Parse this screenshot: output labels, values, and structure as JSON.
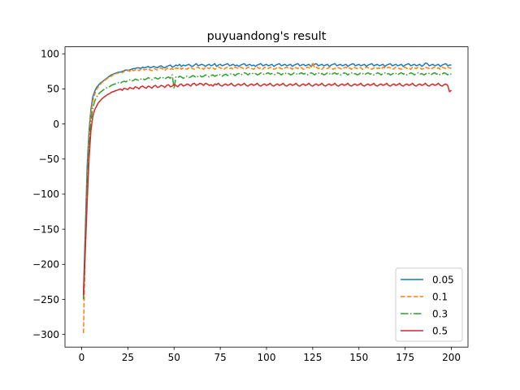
{
  "chart_data": {
    "type": "line",
    "title": "puyuandong's result",
    "xlabel": "",
    "ylabel": "",
    "xlim": [
      -9,
      209
    ],
    "ylim": [
      -318,
      110
    ],
    "x_ticks": [
      0,
      25,
      50,
      75,
      100,
      125,
      150,
      175,
      200
    ],
    "y_ticks": [
      -300,
      -250,
      -200,
      -150,
      -100,
      -50,
      0,
      50,
      100
    ],
    "grid": false,
    "legend_position": "lower-right",
    "x_start": 1,
    "series": [
      {
        "name": "0.05",
        "color": "#1f77b4",
        "dash": "solid",
        "values": [
          -240,
          -150,
          -60,
          -10,
          20,
          38,
          46,
          52,
          55,
          58,
          60,
          62,
          64,
          66,
          68,
          70,
          71,
          72,
          73,
          74,
          74,
          75,
          76,
          77,
          76,
          77,
          78,
          79,
          79,
          80,
          80,
          79,
          81,
          80,
          81,
          82,
          80,
          81,
          82,
          81,
          80,
          82,
          83,
          81,
          80,
          82,
          83,
          84,
          81,
          82,
          84,
          83,
          85,
          82,
          84,
          83,
          84,
          85,
          83,
          82,
          84,
          86,
          83,
          84,
          85,
          84,
          82,
          84,
          85,
          83,
          84,
          86,
          82,
          84,
          85,
          83,
          84,
          85,
          86,
          83,
          84,
          85,
          83,
          84,
          82,
          84,
          85,
          86,
          83,
          84,
          85,
          83,
          84,
          82,
          84,
          85,
          86,
          83,
          84,
          85,
          83,
          84,
          85,
          82,
          84,
          85,
          86,
          83,
          84,
          85,
          83,
          84,
          85,
          82,
          84,
          85,
          86,
          83,
          84,
          85,
          83,
          84,
          85,
          82,
          84,
          85,
          86,
          83,
          84,
          85,
          83,
          84,
          85,
          82,
          84,
          85,
          86,
          83,
          84,
          85,
          83,
          84,
          85,
          82,
          84,
          85,
          86,
          83,
          84,
          85,
          83,
          84,
          85,
          82,
          84,
          85,
          86,
          83,
          84,
          85,
          83,
          84,
          85,
          82,
          84,
          85,
          86,
          83,
          84,
          85,
          83,
          84,
          85,
          82,
          84,
          85,
          86,
          83,
          84,
          85,
          83,
          84,
          85,
          82,
          84,
          87,
          86,
          83,
          84,
          85,
          83,
          84,
          85,
          82,
          84,
          85,
          86,
          83,
          84,
          84
        ]
      },
      {
        "name": "0.1",
        "color": "#ff7f0e",
        "dash": "dashed",
        "values": [
          -298,
          -170,
          -80,
          -20,
          15,
          32,
          42,
          49,
          53,
          56,
          59,
          61,
          63,
          65,
          67,
          68,
          70,
          71,
          72,
          73,
          74,
          73,
          75,
          76,
          77,
          75,
          78,
          76,
          77,
          78,
          76,
          78,
          79,
          77,
          78,
          79,
          77,
          76,
          79,
          78,
          77,
          79,
          80,
          78,
          76,
          79,
          80,
          78,
          79,
          77,
          80,
          79,
          81,
          78,
          80,
          79,
          78,
          80,
          81,
          79,
          78,
          80,
          81,
          79,
          80,
          78,
          81,
          80,
          79,
          81,
          80,
          78,
          79,
          81,
          80,
          79,
          78,
          80,
          81,
          79,
          80,
          78,
          81,
          80,
          79,
          81,
          80,
          78,
          79,
          81,
          80,
          79,
          78,
          80,
          81,
          79,
          80,
          78,
          81,
          80,
          79,
          81,
          80,
          78,
          79,
          81,
          80,
          79,
          78,
          80,
          81,
          79,
          80,
          78,
          81,
          80,
          79,
          81,
          80,
          78,
          79,
          81,
          80,
          79,
          88,
          80,
          81,
          79,
          80,
          78,
          81,
          80,
          79,
          81,
          80,
          78,
          79,
          81,
          80,
          79,
          78,
          80,
          81,
          79,
          80,
          78,
          81,
          80,
          79,
          81,
          80,
          78,
          79,
          81,
          80,
          79,
          78,
          80,
          81,
          79,
          80,
          78,
          81,
          80,
          79,
          81,
          80,
          78,
          79,
          81,
          80,
          79,
          78,
          80,
          81,
          79,
          80,
          78,
          81,
          80,
          79,
          81,
          80,
          78,
          79,
          81,
          80,
          79,
          78,
          80,
          81,
          79,
          80,
          78,
          81,
          80,
          79,
          81,
          80,
          79
        ]
      },
      {
        "name": "0.3",
        "color": "#2ca02c",
        "dash": "dashdot",
        "values": [
          -250,
          -160,
          -90,
          -30,
          5,
          22,
          32,
          38,
          42,
          45,
          47,
          49,
          51,
          52,
          53,
          55,
          56,
          57,
          58,
          59,
          58,
          60,
          61,
          60,
          62,
          63,
          61,
          62,
          64,
          63,
          62,
          64,
          65,
          63,
          64,
          66,
          65,
          63,
          65,
          66,
          64,
          65,
          67,
          66,
          64,
          66,
          67,
          65,
          70,
          50,
          67,
          66,
          68,
          67,
          65,
          67,
          68,
          66,
          67,
          69,
          68,
          66,
          68,
          69,
          67,
          68,
          70,
          69,
          67,
          69,
          70,
          68,
          69,
          71,
          70,
          68,
          70,
          71,
          69,
          70,
          72,
          71,
          69,
          71,
          72,
          70,
          71,
          73,
          72,
          70,
          72,
          73,
          71,
          72,
          70,
          71,
          73,
          72,
          70,
          72,
          73,
          71,
          72,
          70,
          71,
          73,
          72,
          70,
          72,
          73,
          71,
          72,
          70,
          71,
          73,
          72,
          70,
          72,
          73,
          71,
          72,
          70,
          71,
          73,
          72,
          70,
          72,
          73,
          71,
          72,
          70,
          71,
          73,
          72,
          70,
          72,
          73,
          71,
          72,
          70,
          71,
          73,
          72,
          70,
          72,
          73,
          71,
          72,
          70,
          71,
          73,
          72,
          70,
          72,
          73,
          71,
          72,
          70,
          71,
          73,
          72,
          70,
          72,
          73,
          71,
          72,
          70,
          71,
          73,
          72,
          70,
          72,
          73,
          71,
          72,
          70,
          71,
          73,
          72,
          70,
          72,
          73,
          71,
          72,
          70,
          71,
          73,
          72,
          70,
          72,
          73,
          71,
          72,
          70,
          71,
          73,
          72,
          70,
          72,
          71
        ]
      },
      {
        "name": "0.5",
        "color": "#d62728",
        "dash": "solid",
        "values": [
          -245,
          -180,
          -110,
          -50,
          -10,
          10,
          20,
          25,
          30,
          33,
          36,
          38,
          40,
          42,
          43,
          45,
          46,
          47,
          48,
          49,
          50,
          48,
          51,
          50,
          49,
          52,
          51,
          50,
          53,
          52,
          50,
          53,
          54,
          52,
          51,
          54,
          53,
          51,
          54,
          55,
          52,
          53,
          55,
          54,
          52,
          55,
          56,
          53,
          54,
          56,
          55,
          53,
          56,
          57,
          54,
          55,
          57,
          56,
          54,
          57,
          58,
          55,
          56,
          58,
          57,
          55,
          58,
          57,
          55,
          56,
          54,
          57,
          56,
          58,
          55,
          54,
          56,
          57,
          55,
          56,
          58,
          55,
          54,
          56,
          57,
          55,
          56,
          58,
          55,
          54,
          56,
          57,
          55,
          56,
          58,
          55,
          54,
          56,
          57,
          55,
          56,
          58,
          55,
          54,
          56,
          57,
          55,
          56,
          58,
          55,
          54,
          56,
          57,
          55,
          56,
          58,
          55,
          54,
          56,
          57,
          55,
          56,
          58,
          55,
          54,
          56,
          57,
          55,
          56,
          58,
          55,
          54,
          56,
          57,
          55,
          56,
          58,
          55,
          54,
          56,
          57,
          55,
          56,
          58,
          55,
          54,
          56,
          57,
          55,
          56,
          58,
          55,
          54,
          56,
          57,
          55,
          56,
          58,
          55,
          54,
          56,
          57,
          55,
          56,
          58,
          55,
          54,
          56,
          57,
          55,
          56,
          58,
          55,
          54,
          56,
          57,
          55,
          56,
          58,
          55,
          54,
          56,
          57,
          55,
          56,
          58,
          55,
          54,
          56,
          57,
          55,
          56,
          58,
          55,
          54,
          56,
          57,
          55,
          46,
          48
        ]
      }
    ]
  }
}
